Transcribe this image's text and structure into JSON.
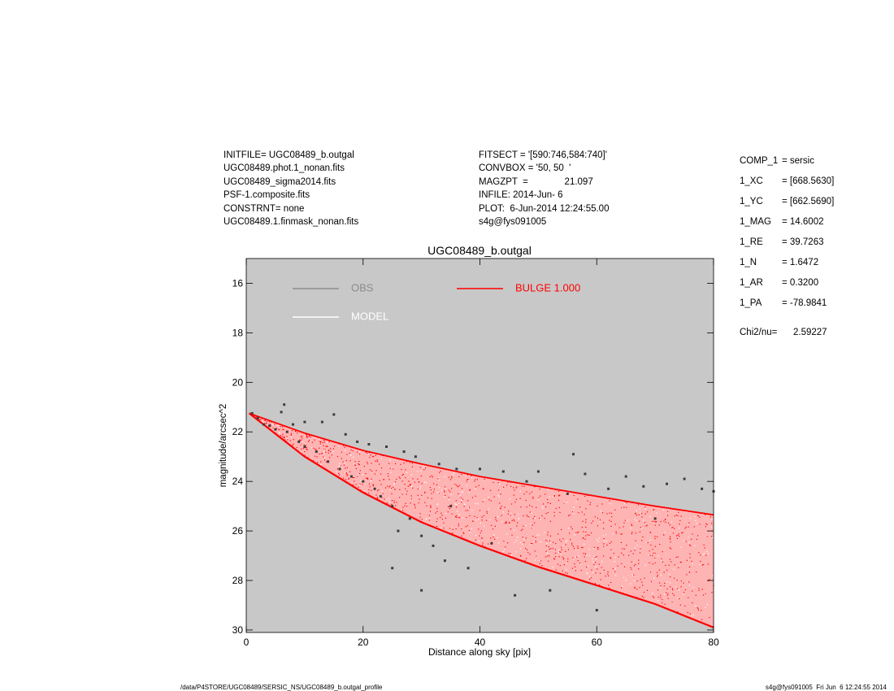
{
  "header": {
    "left": [
      "INITFILE= UGC08489_b.outgal",
      "UGC08489.phot.1_nonan.fits",
      "UGC08489_sigma2014.fits",
      "PSF-1.composite.fits",
      "CONSTRNT= none",
      "UGC08489.1.finmask_nonan.fits"
    ],
    "middle": [
      "FITSECT = '[590:746,584:740]'",
      "CONVBOX = '50, 50  '",
      "MAGZPT  =              21.097",
      "INFILE: 2014-Jun- 6",
      "PLOT:  6-Jun-2014 12:24:55.00",
      "s4g@fys091005"
    ]
  },
  "component_panel": [
    {
      "key": "COMP_1",
      "value": "= sersic"
    },
    {
      "key": "1_XC",
      "value": "= [668.5630]"
    },
    {
      "key": "1_YC",
      "value": "= [662.5690]"
    },
    {
      "key": "1_MAG",
      "value": "= 14.6002"
    },
    {
      "key": "1_RE",
      "value": "= 39.7263"
    },
    {
      "key": "1_N",
      "value": "= 1.6472"
    },
    {
      "key": "1_AR",
      "value": "= 0.3200"
    },
    {
      "key": "1_PA",
      "value": "= -78.9841"
    },
    {
      "key": "Chi2/nu=",
      "value": "2.59227"
    }
  ],
  "footer": {
    "left": "/data/P4STORE/UGC08489/SERSIC_NS/UGC08489_b.outgal_profile",
    "right": "s4g@fys091005  Fri Jun  6 12:24:55 2014"
  },
  "chart_data": {
    "type": "scatter",
    "title": "UGC08489_b.outgal",
    "xlabel": "Distance along sky [pix]",
    "ylabel": "magnitude/arcsec^2",
    "xlim": [
      0,
      80
    ],
    "ylim": [
      15,
      30.1
    ],
    "y_inverted": true,
    "xticks": [
      0,
      20,
      40,
      60,
      80
    ],
    "yticks": [
      16,
      18,
      20,
      22,
      24,
      26,
      28,
      30
    ],
    "grid": false,
    "plot_background": "#c8c8c8",
    "legend_placement": "top",
    "legend": [
      {
        "label": "OBS",
        "color": "#8c8c8c"
      },
      {
        "label": "MODEL",
        "color": "#ffffff"
      },
      {
        "label": "BULGE  1.000",
        "color": "#ff0000"
      }
    ],
    "series": [
      {
        "name": "OBS",
        "color": "#3c3c3c",
        "points": [
          [
            1.0,
            21.25
          ],
          [
            2.0,
            21.45
          ],
          [
            3.0,
            21.7
          ],
          [
            4.0,
            21.75
          ],
          [
            5.0,
            21.9
          ],
          [
            6.0,
            21.2
          ],
          [
            6.5,
            20.9
          ],
          [
            7.0,
            22.0
          ],
          [
            8.0,
            21.7
          ],
          [
            9.0,
            22.4
          ],
          [
            10.0,
            22.6
          ],
          [
            10.0,
            21.6
          ],
          [
            12.0,
            22.8
          ],
          [
            13.0,
            21.6
          ],
          [
            14.0,
            23.2
          ],
          [
            15.0,
            21.3
          ],
          [
            16.0,
            23.5
          ],
          [
            17.0,
            22.1
          ],
          [
            18.0,
            23.8
          ],
          [
            19.0,
            22.4
          ],
          [
            20.0,
            24.0
          ],
          [
            21.0,
            22.5
          ],
          [
            22.0,
            24.3
          ],
          [
            23.0,
            24.6
          ],
          [
            24.0,
            22.6
          ],
          [
            25.0,
            25.0
          ],
          [
            25.0,
            27.5
          ],
          [
            26.0,
            26.0
          ],
          [
            27.0,
            22.8
          ],
          [
            28.0,
            25.5
          ],
          [
            29.0,
            23.0
          ],
          [
            30.0,
            26.2
          ],
          [
            30.0,
            28.4
          ],
          [
            32.0,
            26.6
          ],
          [
            33.0,
            23.3
          ],
          [
            34.0,
            27.2
          ],
          [
            35.0,
            25.0
          ],
          [
            36.0,
            23.5
          ],
          [
            38.0,
            27.5
          ],
          [
            40.0,
            23.5
          ],
          [
            42.0,
            26.5
          ],
          [
            44.0,
            23.6
          ],
          [
            46.0,
            28.6
          ],
          [
            48.0,
            24.0
          ],
          [
            50.0,
            23.6
          ],
          [
            52.0,
            28.4
          ],
          [
            55.0,
            24.5
          ],
          [
            56.0,
            22.9
          ],
          [
            58.0,
            23.7
          ],
          [
            60.0,
            29.2
          ],
          [
            62.0,
            24.3
          ],
          [
            65.0,
            23.8
          ],
          [
            68.0,
            24.2
          ],
          [
            70.0,
            25.5
          ],
          [
            72.0,
            24.1
          ],
          [
            75.0,
            23.9
          ],
          [
            78.0,
            24.3
          ],
          [
            80.0,
            24.4
          ]
        ]
      },
      {
        "name": "BULGE  1.000",
        "color": "#ff0000",
        "envelope_upper": [
          [
            0.5,
            21.25
          ],
          [
            10,
            22.05
          ],
          [
            20,
            22.75
          ],
          [
            30,
            23.3
          ],
          [
            40,
            23.8
          ],
          [
            50,
            24.2
          ],
          [
            60,
            24.6
          ],
          [
            70,
            25.0
          ],
          [
            80,
            25.35
          ]
        ],
        "envelope_lower": [
          [
            0.5,
            21.25
          ],
          [
            10,
            23.0
          ],
          [
            20,
            24.45
          ],
          [
            30,
            25.65
          ],
          [
            40,
            26.6
          ],
          [
            50,
            27.45
          ],
          [
            60,
            28.2
          ],
          [
            70,
            28.95
          ],
          [
            80,
            29.9
          ]
        ]
      }
    ]
  }
}
